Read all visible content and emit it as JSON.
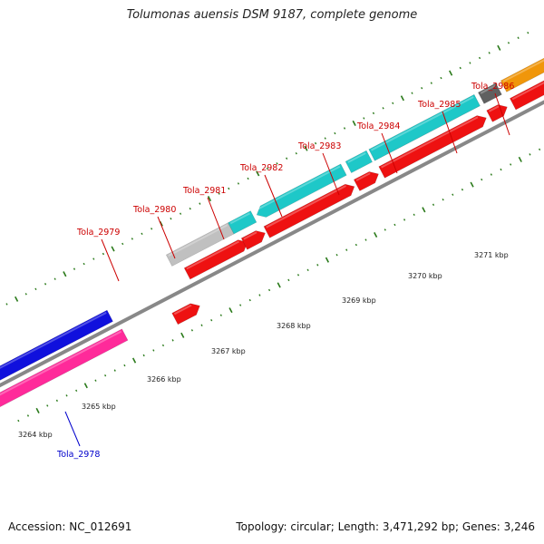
{
  "header": {
    "title": "Tolumonas auensis DSM 9187, complete genome"
  },
  "footer": {
    "accession": "Accession: NC_012691",
    "topology": "Topology: circular; Length: 3,471,292 bp; Genes: 3,246"
  },
  "colors": {
    "gray_strand": "#c0c0c0",
    "teal": "#1ec8c8",
    "dark_gray": "#606060",
    "orange": "#f0960a",
    "red": "#ee1111",
    "blue": "#1010dd",
    "pink": "#ff2a9a",
    "backbone": "#888888",
    "tick": "#2a7a1a",
    "label_red": "#cc0000",
    "label_blue": "#0000cc"
  },
  "scale_labels": [
    "3264 kbp",
    "3265 kbp",
    "3266 kbp",
    "3267 kbp",
    "3268 kbp",
    "3269 kbp",
    "3270 kbp",
    "3271 kbp"
  ],
  "gene_labels": [
    {
      "name": "Tola_2978",
      "color": "blue"
    },
    {
      "name": "Tola_2979",
      "color": "red"
    },
    {
      "name": "Tola_2980",
      "color": "red"
    },
    {
      "name": "Tola_2981",
      "color": "red"
    },
    {
      "name": "Tola_2982",
      "color": "red"
    },
    {
      "name": "Tola_2983",
      "color": "red"
    },
    {
      "name": "Tola_2984",
      "color": "red"
    },
    {
      "name": "Tola_2985",
      "color": "red"
    },
    {
      "name": "Tola_2986",
      "color": "red"
    }
  ]
}
